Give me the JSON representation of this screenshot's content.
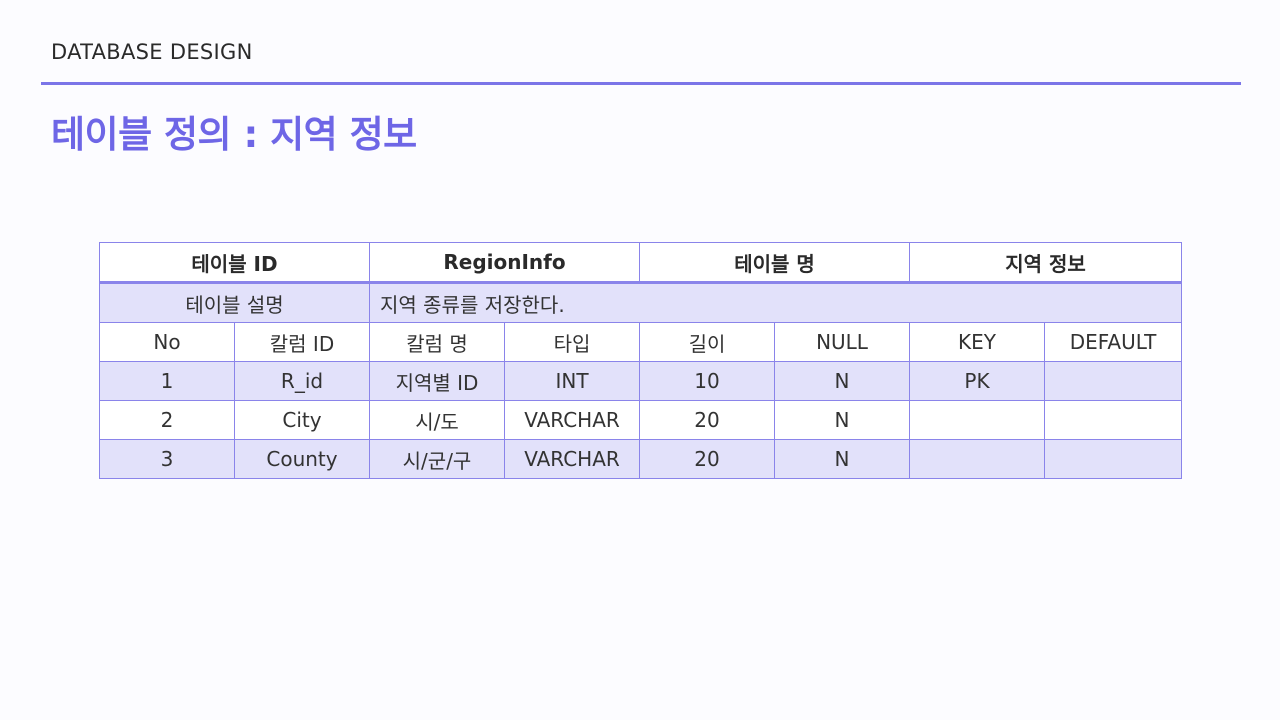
{
  "header": {
    "label": "DATABASE DESIGN",
    "title": "테이블 정의 : 지역 정보"
  },
  "table_meta": {
    "id_label": "테이블 ID",
    "id_value": "RegionInfo",
    "name_label": "테이블 명",
    "name_value": "지역 정보",
    "desc_label": "테이블 설명",
    "desc_value": "지역 종류를 저장한다."
  },
  "columns": [
    "No",
    "칼럼 ID",
    "칼럼 명",
    "타입",
    "길이",
    "NULL",
    "KEY",
    "DEFAULT"
  ],
  "rows": [
    [
      "1",
      "R_id",
      "지역별 ID",
      "INT",
      "10",
      "N",
      "PK",
      ""
    ],
    [
      "2",
      "City",
      "시/도",
      "VARCHAR",
      "20",
      "N",
      "",
      ""
    ],
    [
      "3",
      "County",
      "시/군/구",
      "VARCHAR",
      "20",
      "N",
      "",
      ""
    ]
  ],
  "colors": {
    "accent": "#6e66e6",
    "rule": "#7b75e8",
    "table_border": "#8a84ea",
    "row_shade": "#e2e1fa",
    "background": "#fcfcff"
  }
}
